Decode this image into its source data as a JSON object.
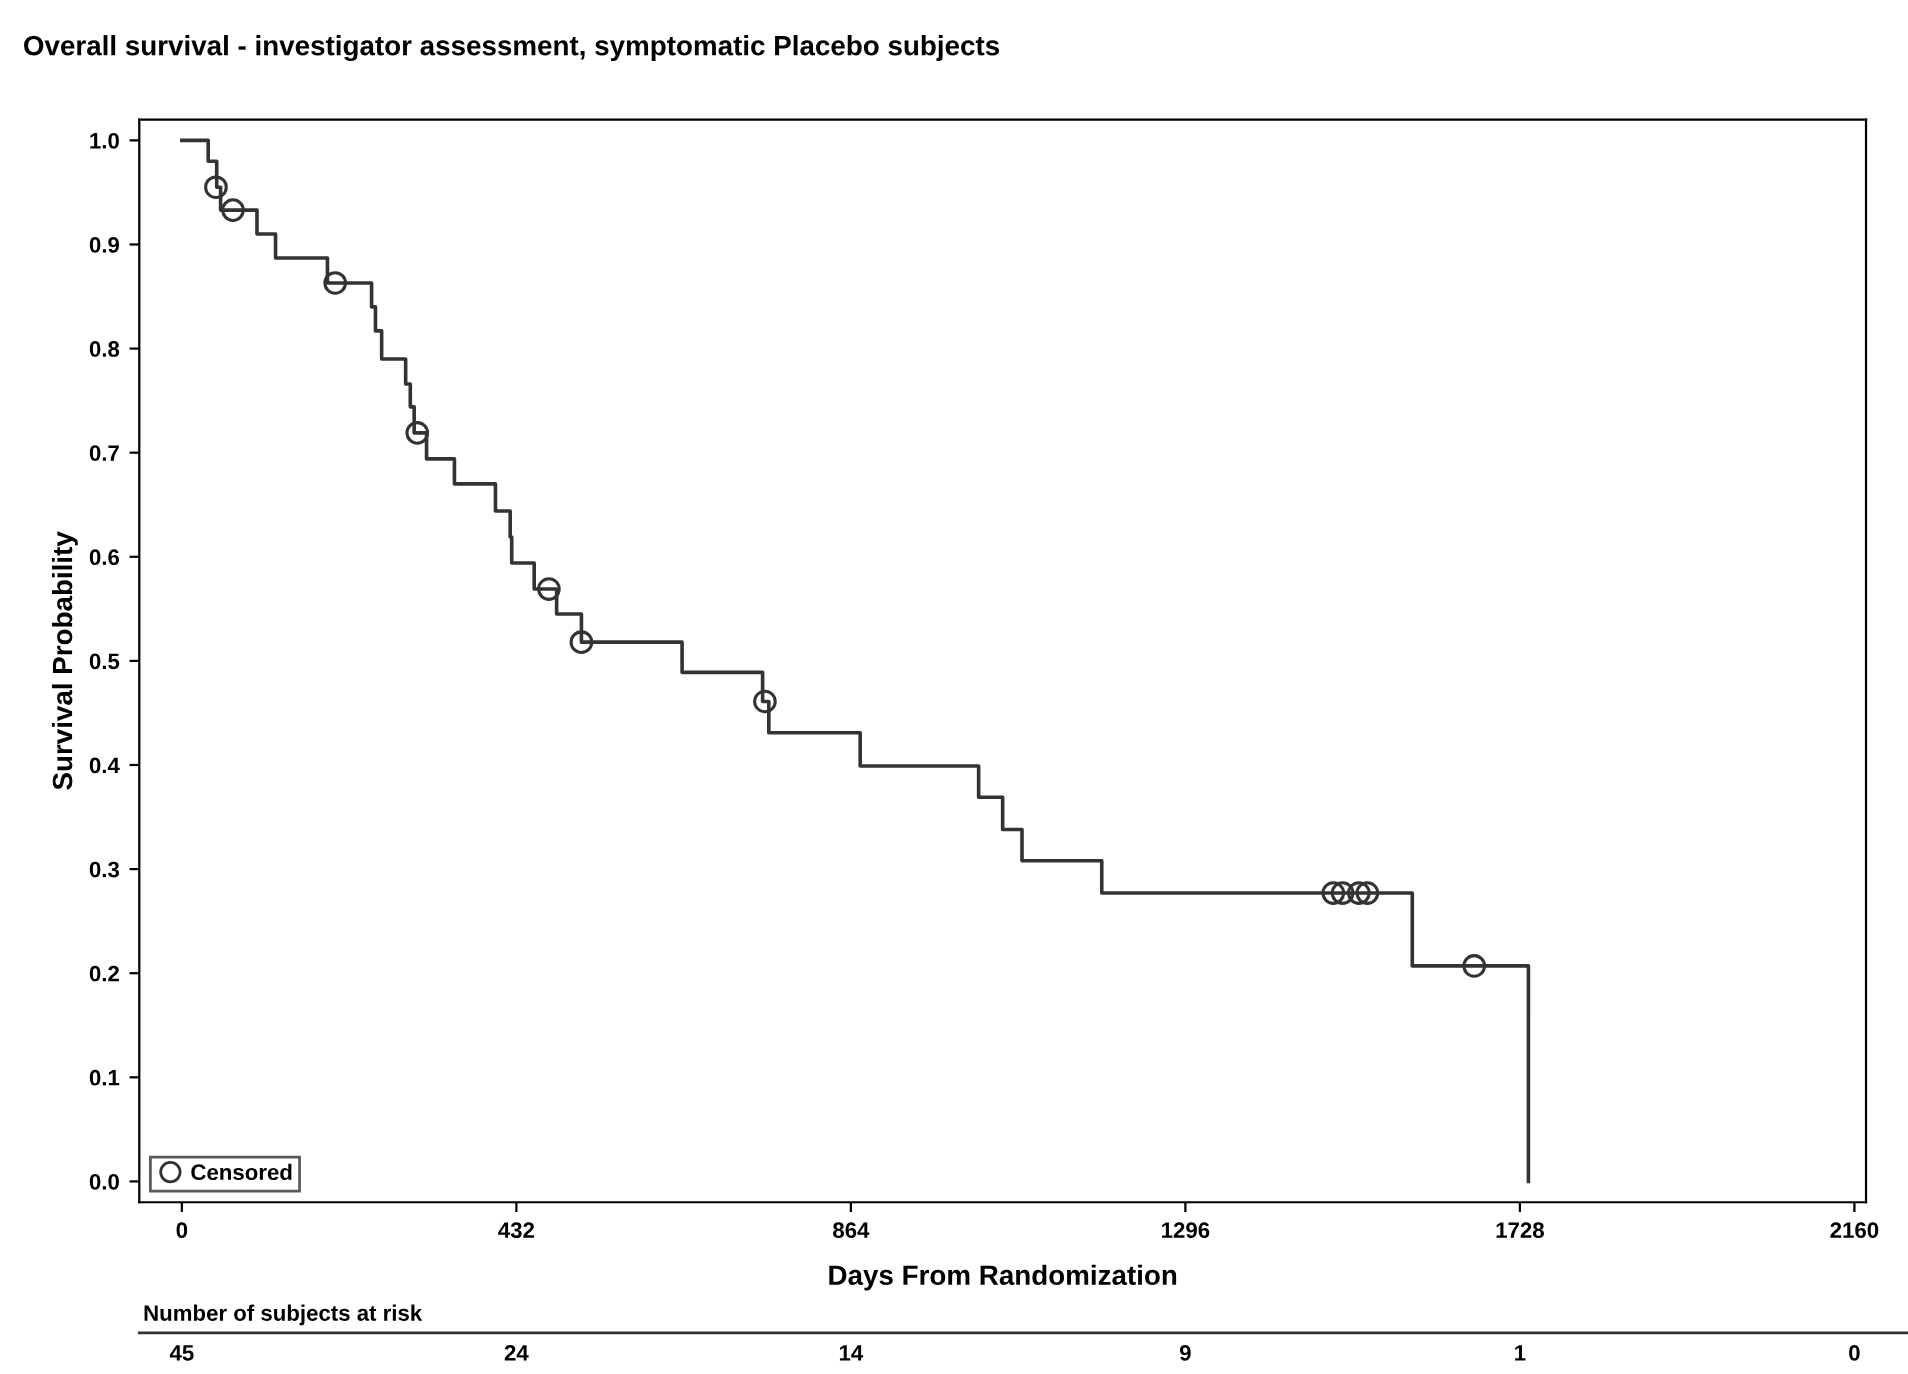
{
  "chart_data": {
    "type": "step",
    "title": "Overall survival - investigator assessment, symptomatic Placebo subjects",
    "xlabel": "Days From Randomization",
    "ylabel": "Survival Probability",
    "series": [
      {
        "color": "#333333",
        "marker": "none",
        "line_style": "solid",
        "x": [
          0,
          34,
          45,
          50,
          97,
          121,
          188,
          245,
          250,
          258,
          289,
          295,
          300,
          316,
          352,
          405,
          424,
          426,
          455,
          484,
          516,
          646,
          750,
          758,
          876,
          1029,
          1060,
          1085,
          1188,
          1589,
          1739
        ],
        "values": [
          1.0,
          0.98,
          0.955,
          0.933,
          0.91,
          0.887,
          0.863,
          0.84,
          0.817,
          0.79,
          0.766,
          0.744,
          0.719,
          0.694,
          0.67,
          0.644,
          0.619,
          0.594,
          0.569,
          0.545,
          0.518,
          0.489,
          0.461,
          0.431,
          0.399,
          0.369,
          0.338,
          0.308,
          0.277,
          0.207,
          0.0
        ]
      },
      {
        "type": "scatter",
        "name": "Censored",
        "color": "#333333",
        "marker": "circle",
        "x": [
          44,
          66,
          198,
          304,
          474,
          516,
          753,
          1487,
          1499,
          1520,
          1531,
          1669
        ],
        "values": [
          0.955,
          0.933,
          0.863,
          0.719,
          0.569,
          0.518,
          0.461,
          0.277,
          0.277,
          0.277,
          0.277,
          0.207
        ]
      }
    ],
    "xlim": [
      -55,
      2175
    ],
    "xticks": [
      0,
      432,
      864,
      1296,
      1728,
      2160
    ],
    "ylim": [
      -0.02,
      1.02
    ],
    "yticks": [
      {
        "value": 0,
        "label": "0.0"
      },
      {
        "value": 0.1,
        "label": "0.1"
      },
      {
        "value": 0.2,
        "label": "0.2"
      },
      {
        "value": 0.3,
        "label": "0.3"
      },
      {
        "value": 0.4,
        "label": "0.4"
      },
      {
        "value": 0.5,
        "label": "0.5"
      },
      {
        "value": 0.6,
        "label": "0.6"
      },
      {
        "value": 0.7,
        "label": "0.7"
      },
      {
        "value": 0.8,
        "label": "0.8"
      },
      {
        "value": 0.9,
        "label": "0.9"
      },
      {
        "value": 1.0,
        "label": "1.0"
      }
    ],
    "grid": false,
    "legend": "bottom left",
    "annotations": [
      "Number of subjects at risk",
      "45",
      "24",
      "14",
      "9",
      "1",
      "0"
    ]
  }
}
